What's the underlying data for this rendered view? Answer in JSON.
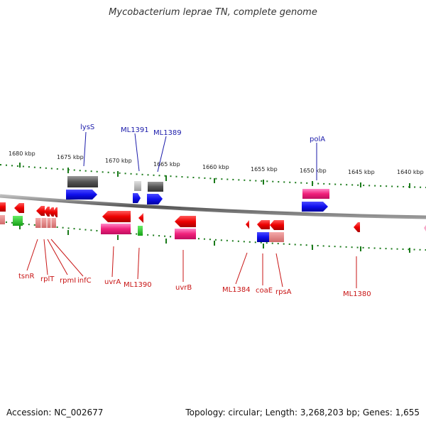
{
  "title": "Mycobacterium leprae TN, complete genome",
  "footer": {
    "accession": "Accession: NC_002677",
    "summary": "Topology: circular; Length: 3,268,203 bp; Genes: 1,655"
  },
  "ticks": [
    "1680 kbp",
    "1675 kbp",
    "1670 kbp",
    "1665 kbp",
    "1660 kbp",
    "1655 kbp",
    "1650 kbp",
    "1645 kbp",
    "1640 kbp"
  ],
  "genes_top": [
    "lysS",
    "ML1391",
    "ML1389",
    "polA"
  ],
  "genes_bottom": [
    "tsnR",
    "rplT",
    "rpmI",
    "infC",
    "uvrA",
    "ML1390",
    "uvrB",
    "ML1384",
    "coaE",
    "rpsA",
    "ML1380"
  ]
}
